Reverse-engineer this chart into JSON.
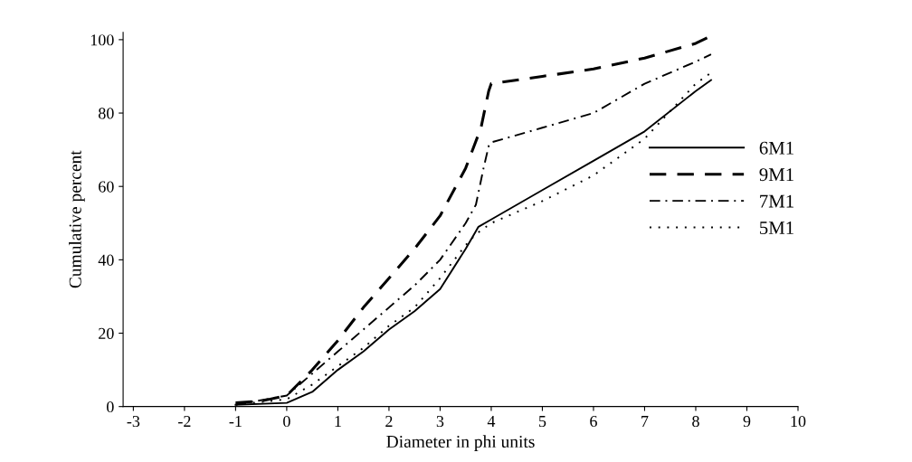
{
  "chart_data": {
    "type": "line",
    "xlabel": "Diameter in phi units",
    "ylabel": "Cumulative percent",
    "xlim": [
      -3.2,
      10
    ],
    "xticks": [
      -3,
      -2,
      -1,
      0,
      1,
      2,
      3,
      4,
      5,
      6,
      7,
      8,
      9,
      10
    ],
    "ylim": [
      0,
      102
    ],
    "yticks": [
      0,
      20,
      40,
      60,
      80,
      100
    ],
    "grid": false,
    "legend": "right",
    "marker": "none",
    "series": [
      {
        "name": "6M1",
        "color": "#000000",
        "line_style": "solid",
        "x": [
          -1,
          0,
          0.5,
          1,
          1.5,
          2,
          2.5,
          3,
          3.5,
          3.75,
          4,
          5,
          6,
          7,
          8,
          8.3
        ],
        "values": [
          0.5,
          1,
          4,
          10,
          15,
          21,
          26,
          32,
          43,
          49,
          51,
          59,
          67,
          75,
          86,
          89
        ]
      },
      {
        "name": "9M1",
        "color": "#000000",
        "line_style": "dashed",
        "x": [
          -1,
          -0.5,
          0,
          0.5,
          1,
          1.5,
          2,
          2.5,
          3,
          3.5,
          3.8,
          3.95,
          4,
          5,
          6,
          7,
          8,
          8.3
        ],
        "values": [
          1,
          1.5,
          3,
          10,
          18,
          27,
          35,
          43,
          52,
          65,
          76,
          86,
          88,
          90,
          92,
          95,
          99,
          101
        ]
      },
      {
        "name": "7M1",
        "color": "#000000",
        "line_style": "dashdot",
        "x": [
          -1,
          0,
          0.5,
          1,
          1.5,
          2,
          2.5,
          3,
          3.5,
          3.7,
          3.85,
          3.95,
          4,
          5,
          6,
          7,
          8,
          8.3
        ],
        "values": [
          0.5,
          3,
          9,
          15,
          21,
          27,
          33,
          40,
          50,
          55,
          65,
          71,
          72,
          76,
          80,
          88,
          94,
          96
        ]
      },
      {
        "name": "5M1",
        "color": "#000000",
        "line_style": "dotted",
        "x": [
          -1,
          0,
          0.5,
          1,
          1.5,
          2,
          2.5,
          3,
          3.5,
          3.7,
          4,
          5,
          6,
          7,
          8,
          8.3
        ],
        "values": [
          0.5,
          2,
          6,
          11,
          16,
          22,
          27,
          35,
          44,
          47,
          50,
          56,
          63,
          73,
          88,
          91
        ]
      }
    ]
  }
}
